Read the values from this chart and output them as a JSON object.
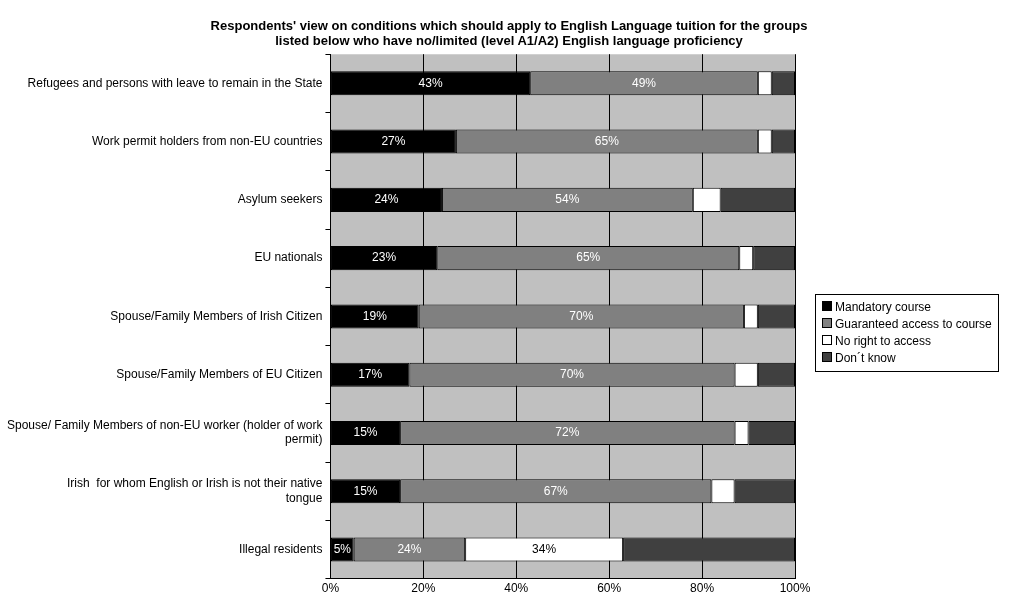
{
  "chart_data": {
    "type": "bar",
    "orientation": "horizontal",
    "stacked": true,
    "title": "Respondents' view on conditions which should apply to English Language tuition for the groups listed below who have no/limited (level A1/A2) English language proficiency",
    "categories": [
      "Refugees and persons with leave to remain in the State",
      "Work permit holders from non-EU countries",
      "Asylum seekers",
      "EU nationals",
      "Spouse/Family Members of Irish Citizen",
      "Spouse/Family Members of EU Citizen",
      "Spouse/ Family Members of non-EU worker (holder of work permit)",
      "Irish  for whom English or Irish is not their native tongue",
      "Illegal residents"
    ],
    "series": [
      {
        "name": "Mandatory course",
        "color": "#000000",
        "values": [
          43,
          27,
          24,
          23,
          19,
          17,
          15,
          15,
          5
        ],
        "value_labels": [
          "43%",
          "27%",
          "24%",
          "23%",
          "19%",
          "17%",
          "15%",
          "15%",
          "5%"
        ]
      },
      {
        "name": "Guaranteed access to course",
        "color": "#808080",
        "values": [
          49,
          65,
          54,
          65,
          70,
          70,
          72,
          67,
          24
        ],
        "value_labels": [
          "49%",
          "65%",
          "54%",
          "65%",
          "70%",
          "70%",
          "72%",
          "67%",
          "24%"
        ]
      },
      {
        "name": "No right to access",
        "color": "#ffffff",
        "values": [
          3,
          3,
          6,
          3,
          3,
          5,
          3,
          5,
          34
        ],
        "value_labels": [
          null,
          null,
          null,
          null,
          null,
          null,
          null,
          null,
          "34%"
        ]
      },
      {
        "name": "Don´t know",
        "color": "#404040",
        "values": [
          5,
          5,
          16,
          9,
          8,
          8,
          10,
          13,
          37
        ]
      }
    ],
    "xlim": [
      0,
      100
    ],
    "xticks": [
      {
        "value": 0,
        "label": "0%"
      },
      {
        "value": 20,
        "label": "20%"
      },
      {
        "value": 40,
        "label": "40%"
      },
      {
        "value": 60,
        "label": "60%"
      },
      {
        "value": 80,
        "label": "80%"
      },
      {
        "value": 100,
        "label": "100%"
      }
    ],
    "grid": "x",
    "legend": "right"
  }
}
